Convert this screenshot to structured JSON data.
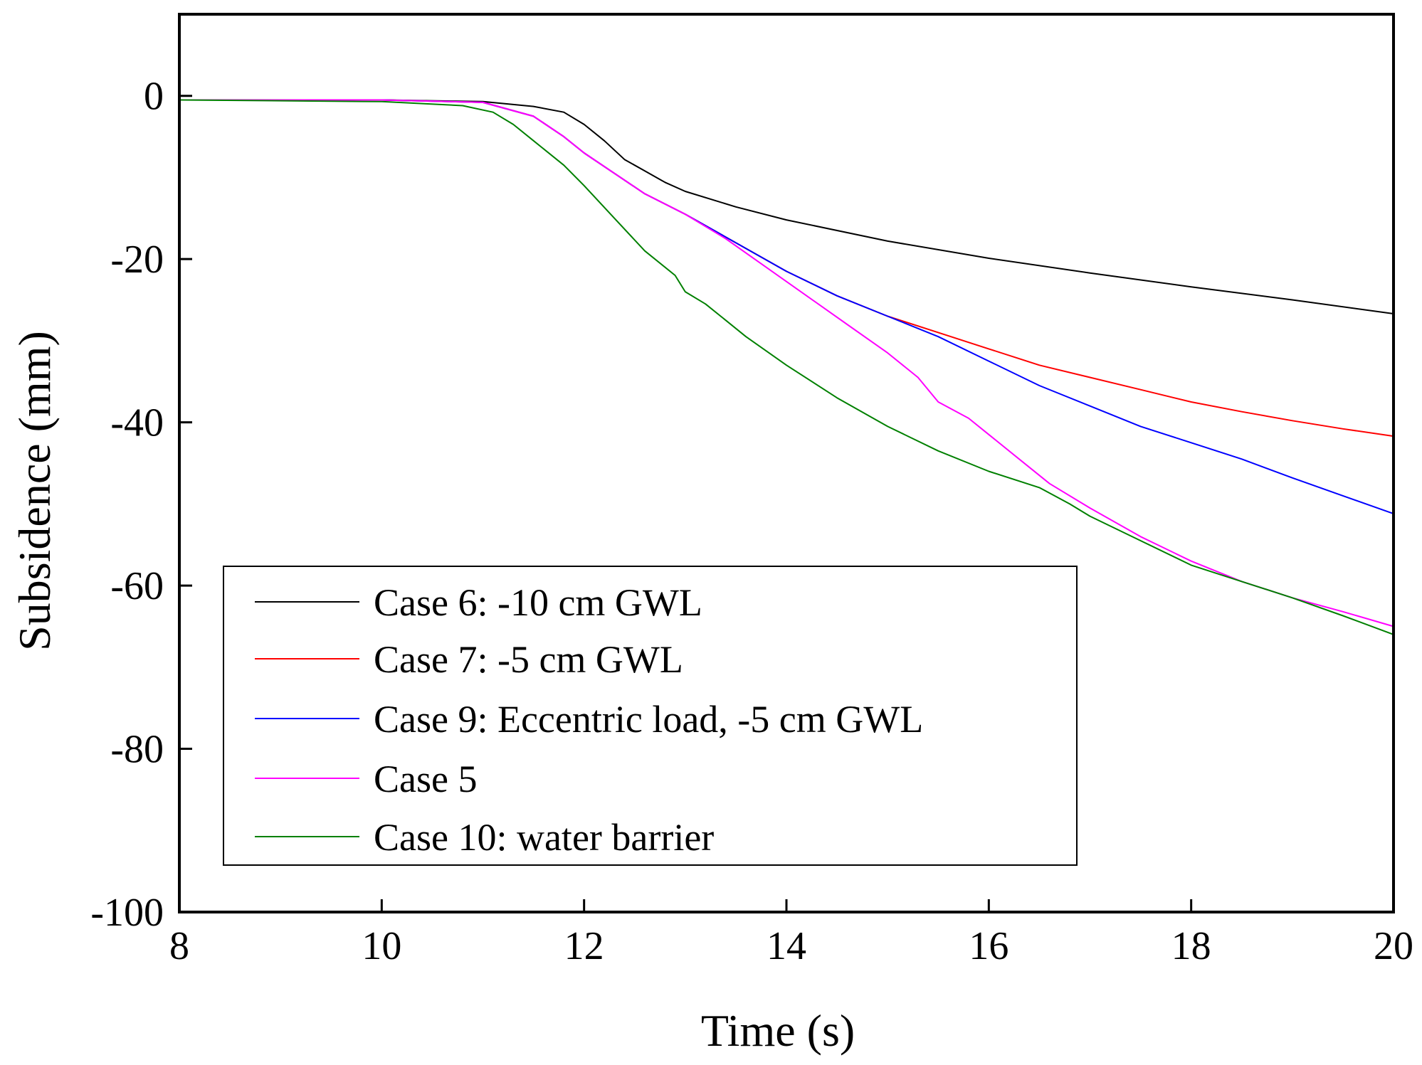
{
  "chart_data": {
    "type": "line",
    "title": "",
    "xlabel": "Time (s)",
    "ylabel": "Subsidence (mm)",
    "xlim": [
      8,
      20
    ],
    "ylim": [
      -100,
      10
    ],
    "xticks": [
      8,
      10,
      12,
      14,
      16,
      18,
      20
    ],
    "xtick_labels": [
      "8",
      "10",
      "12",
      "14",
      "16",
      "18",
      "20"
    ],
    "yticks": [
      0,
      -20,
      -40,
      -60,
      -80,
      -100
    ],
    "ytick_labels": [
      "0",
      "-20",
      "-40",
      "-60",
      "-80",
      "-100"
    ],
    "grid": false,
    "legend_position": "lower-left",
    "series": [
      {
        "name": "Case 6: -10 cm GWL",
        "color": "#000000",
        "x": [
          8,
          10,
          11,
          11.5,
          11.8,
          12.0,
          12.2,
          12.4,
          12.6,
          12.8,
          13.0,
          13.5,
          14.0,
          15.0,
          16.0,
          17.0,
          18.0,
          19.0,
          20.0
        ],
        "y": [
          -0.5,
          -0.5,
          -0.7,
          -1.3,
          -2.0,
          -3.5,
          -5.5,
          -7.8,
          -9.2,
          -10.6,
          -11.7,
          -13.6,
          -15.2,
          -17.8,
          -19.9,
          -21.7,
          -23.4,
          -25.0,
          -26.7
        ]
      },
      {
        "name": "Case 7: -5 cm GWL",
        "color": "#ff0000",
        "x": [
          8,
          10,
          11,
          11.5,
          11.8,
          12.0,
          12.3,
          12.6,
          13.0,
          13.5,
          14.0,
          14.5,
          15.0,
          15.5,
          16.0,
          16.5,
          17.0,
          17.5,
          18.0,
          18.5,
          19.0,
          19.5,
          20.0
        ],
        "y": [
          -0.5,
          -0.5,
          -0.8,
          -2.5,
          -5.0,
          -7.0,
          -9.5,
          -12.0,
          -14.5,
          -18.0,
          -21.5,
          -24.5,
          -27.0,
          -29.0,
          -31.0,
          -33.0,
          -34.5,
          -36.0,
          -37.5,
          -38.7,
          -39.8,
          -40.8,
          -41.7
        ]
      },
      {
        "name": "Case 9: Eccentric load, -5 cm GWL",
        "color": "#0000ff",
        "x": [
          8,
          10,
          11,
          11.5,
          11.8,
          12.0,
          12.3,
          12.6,
          13.0,
          13.5,
          14.0,
          14.5,
          15.0,
          15.5,
          16.0,
          16.5,
          17.0,
          17.5,
          18.0,
          18.5,
          19.0,
          19.5,
          20.0
        ],
        "y": [
          -0.5,
          -0.5,
          -0.8,
          -2.5,
          -5.0,
          -7.0,
          -9.5,
          -12.0,
          -14.5,
          -18.0,
          -21.5,
          -24.5,
          -27.0,
          -29.5,
          -32.5,
          -35.5,
          -38.0,
          -40.5,
          -42.5,
          -44.5,
          -46.8,
          -49.0,
          -51.2
        ]
      },
      {
        "name": "Case 5",
        "color": "#ff00ff",
        "x": [
          8,
          10,
          11,
          11.5,
          11.8,
          12.0,
          12.3,
          12.6,
          13.0,
          13.4,
          13.8,
          14.2,
          14.6,
          15.0,
          15.3,
          15.5,
          15.8,
          16.0,
          16.3,
          16.6,
          17.0,
          17.5,
          18.0,
          18.5,
          19.0,
          19.5,
          20.0
        ],
        "y": [
          -0.5,
          -0.5,
          -0.8,
          -2.5,
          -5.0,
          -7.0,
          -9.5,
          -12.0,
          -14.5,
          -17.5,
          -21.0,
          -24.5,
          -28.0,
          -31.5,
          -34.5,
          -37.5,
          -39.5,
          -41.5,
          -44.5,
          -47.5,
          -50.5,
          -54.0,
          -57.0,
          -59.5,
          -61.5,
          -63.2,
          -65.0
        ]
      },
      {
        "name": "Case 10: water barrier",
        "color": "#008000",
        "x": [
          8,
          10,
          10.8,
          11.1,
          11.3,
          11.5,
          11.8,
          12.0,
          12.3,
          12.6,
          12.9,
          13.0,
          13.2,
          13.4,
          13.6,
          14.0,
          14.5,
          15.0,
          15.5,
          16.0,
          16.5,
          16.8,
          17.0,
          17.5,
          18.0,
          18.5,
          19.0,
          19.5,
          20.0
        ],
        "y": [
          -0.5,
          -0.7,
          -1.2,
          -2.0,
          -3.5,
          -5.5,
          -8.5,
          -11.0,
          -15.0,
          -19.0,
          -22.0,
          -24.0,
          -25.5,
          -27.5,
          -29.5,
          -33.0,
          -37.0,
          -40.5,
          -43.5,
          -46.0,
          -48.0,
          -50.0,
          -51.5,
          -54.5,
          -57.5,
          -59.5,
          -61.5,
          -63.7,
          -66.0
        ]
      }
    ]
  }
}
